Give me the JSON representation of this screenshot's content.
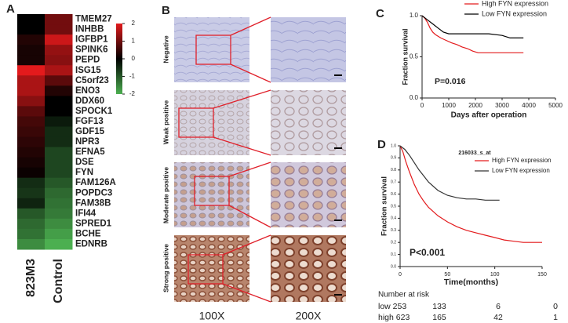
{
  "panel_a": {
    "label": "A",
    "genes": [
      "TMEM27",
      "INHBB",
      "IGFBP1",
      "SPINK6",
      "PEPD",
      "ISG15",
      "C5orf23",
      "ENO3",
      "DDX60",
      "SPOCK1",
      "FGF13",
      "GDF15",
      "NPR3",
      "EFNA5",
      "DSE",
      "FYN",
      "FAM126A",
      "POPDC3",
      "FAM38B",
      "IFI44",
      "SPRED1",
      "BCHE",
      "EDNRB"
    ],
    "columns": [
      "823M3",
      "Control"
    ],
    "values": [
      [
        0,
        1
      ],
      [
        0,
        1
      ],
      [
        0.3,
        1.8
      ],
      [
        0.2,
        1.3
      ],
      [
        0.2,
        1.2
      ],
      [
        2,
        1.5
      ],
      [
        1.5,
        0.8
      ],
      [
        1.5,
        0.3
      ],
      [
        1.2,
        0
      ],
      [
        0.8,
        0
      ],
      [
        0.6,
        -0.3
      ],
      [
        0.5,
        -0.5
      ],
      [
        0.4,
        -0.5
      ],
      [
        0.3,
        -0.8
      ],
      [
        0.2,
        -0.8
      ],
      [
        0.1,
        -0.8
      ],
      [
        -0.5,
        -1
      ],
      [
        -0.6,
        -1.2
      ],
      [
        -0.4,
        -1.3
      ],
      [
        -1,
        -1.4
      ],
      [
        -1.2,
        -1.6
      ],
      [
        -1.3,
        -1.8
      ],
      [
        -1.6,
        -2
      ]
    ],
    "colorbar_lim": [
      -2,
      2
    ],
    "colorbar_ticks": [
      2,
      1,
      0,
      -1,
      -2
    ],
    "high_color": "#e31a1c",
    "mid_color": "#000000",
    "low_color": "#4caf50"
  },
  "panel_b": {
    "label": "B",
    "rows": [
      "Negative",
      "Weak positive",
      "Moderate positive",
      "Strong positive"
    ],
    "columns": [
      "100X",
      "200X"
    ]
  },
  "panel_c": {
    "label": "C",
    "type": "line",
    "ylabel": "Fraction survival",
    "xlabel": "Days after operation",
    "annotation": "P=0.016",
    "xlim": [
      0,
      5000
    ],
    "ylim": [
      0,
      1
    ],
    "xticks": [
      0,
      1000,
      2000,
      3000,
      4000,
      5000
    ],
    "yticks": [
      {
        "value": 0,
        "label": "0.0"
      },
      {
        "value": 0.5,
        "label": "0.5"
      },
      {
        "value": 1,
        "label": "1.0"
      }
    ],
    "series": [
      {
        "name": "High FYN expression",
        "color": "#e31a1c",
        "x": [
          0,
          100,
          200,
          300,
          400,
          500,
          700,
          900,
          1100,
          1300,
          1500,
          1700,
          1900,
          2100,
          2500,
          3000,
          3500,
          3800
        ],
        "values": [
          1,
          0.97,
          0.92,
          0.85,
          0.8,
          0.77,
          0.73,
          0.7,
          0.67,
          0.65,
          0.62,
          0.6,
          0.57,
          0.55,
          0.55,
          0.55,
          0.55,
          0.55
        ]
      },
      {
        "name": "Low FYN expression",
        "color": "#000000",
        "x": [
          0,
          200,
          400,
          600,
          800,
          1000,
          1500,
          2000,
          2500,
          3000,
          3300,
          3600,
          3800
        ],
        "values": [
          1,
          0.95,
          0.9,
          0.85,
          0.8,
          0.78,
          0.78,
          0.78,
          0.78,
          0.76,
          0.73,
          0.73,
          0.73
        ]
      }
    ]
  },
  "panel_d": {
    "label": "D",
    "type": "line",
    "title": "216033_s_at",
    "ylabel": "Fraction survival",
    "xlabel": "Time(months)",
    "annotation": "P<0.001",
    "xlim": [
      0,
      150
    ],
    "ylim": [
      0,
      1
    ],
    "xticks": [
      0,
      50,
      100,
      150
    ],
    "yticks": [
      {
        "value": 0,
        "label": "0.0"
      },
      {
        "value": 0.1,
        "label": "0.1"
      },
      {
        "value": 0.2,
        "label": "0.2"
      },
      {
        "value": 0.3,
        "label": "0.3"
      },
      {
        "value": 0.4,
        "label": "0.4"
      },
      {
        "value": 0.5,
        "label": "0.5"
      },
      {
        "value": 0.6,
        "label": "0.6"
      },
      {
        "value": 0.7,
        "label": "0.7"
      },
      {
        "value": 0.8,
        "label": "0.8"
      },
      {
        "value": 0.9,
        "label": "0.9"
      },
      {
        "value": 1,
        "label": "1.0"
      }
    ],
    "series": [
      {
        "name": "High FYN expression",
        "color": "#e31a1c",
        "x": [
          0,
          3,
          6,
          10,
          15,
          20,
          25,
          30,
          40,
          50,
          60,
          70,
          80,
          90,
          100,
          110,
          120,
          130,
          140,
          150
        ],
        "values": [
          1,
          0.95,
          0.87,
          0.78,
          0.68,
          0.6,
          0.54,
          0.49,
          0.42,
          0.37,
          0.33,
          0.3,
          0.28,
          0.26,
          0.24,
          0.22,
          0.21,
          0.2,
          0.2,
          0.2
        ]
      },
      {
        "name": "Low FYN expression",
        "color": "#333333",
        "x": [
          0,
          5,
          10,
          15,
          20,
          25,
          30,
          40,
          50,
          60,
          70,
          80,
          90,
          100,
          105
        ],
        "values": [
          1,
          0.97,
          0.92,
          0.86,
          0.8,
          0.75,
          0.7,
          0.63,
          0.59,
          0.57,
          0.56,
          0.56,
          0.55,
          0.55,
          0.55
        ]
      }
    ],
    "risk_header": "Number at risk",
    "risk_rows": [
      {
        "label": "low 253",
        "counts": [
          133,
          6,
          0
        ],
        "color": "#222222"
      },
      {
        "label": "high 623",
        "counts": [
          165,
          42,
          1
        ],
        "color": "#e31a1c"
      }
    ]
  }
}
